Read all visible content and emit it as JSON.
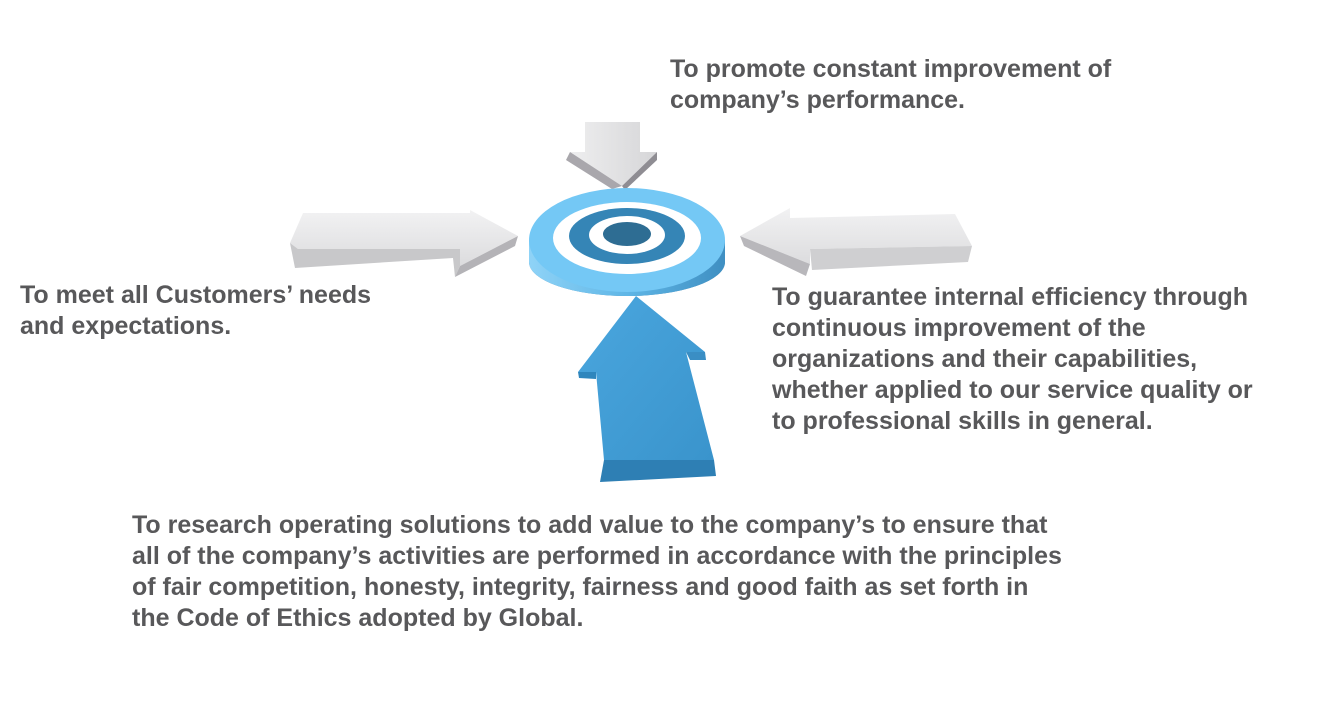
{
  "objectives": {
    "top": {
      "lines": [
        "To promote constant improvement of",
        "company’s performance."
      ]
    },
    "left": {
      "lines": [
        "To meet all Customers’ needs",
        "and expectations."
      ]
    },
    "right": {
      "lines": [
        "To guarantee internal efficiency through",
        "continuous improvement of the",
        "organizations and their capabilities,",
        "whether applied to our service quality or",
        "to professional skills in general."
      ]
    },
    "bottom": {
      "lines": [
        "To research operating solutions to add value to the company’s to ensure that",
        "all of the company’s activities are performed in accordance with the principles",
        "of fair competition, honesty, integrity, fairness and good faith as set forth in",
        "the Code of Ethics adopted by Global."
      ]
    }
  },
  "colors": {
    "text": "#58585a",
    "arrow_grey_light": "#e4e4e6",
    "arrow_grey_dark": "#a3a1a6",
    "arrow_blue": "#449fd6",
    "arrow_blue_dark": "#2e7fb4",
    "target_outer": "#74c8f5",
    "target_ring": "#3585b6",
    "target_center": "#2e6d93"
  }
}
